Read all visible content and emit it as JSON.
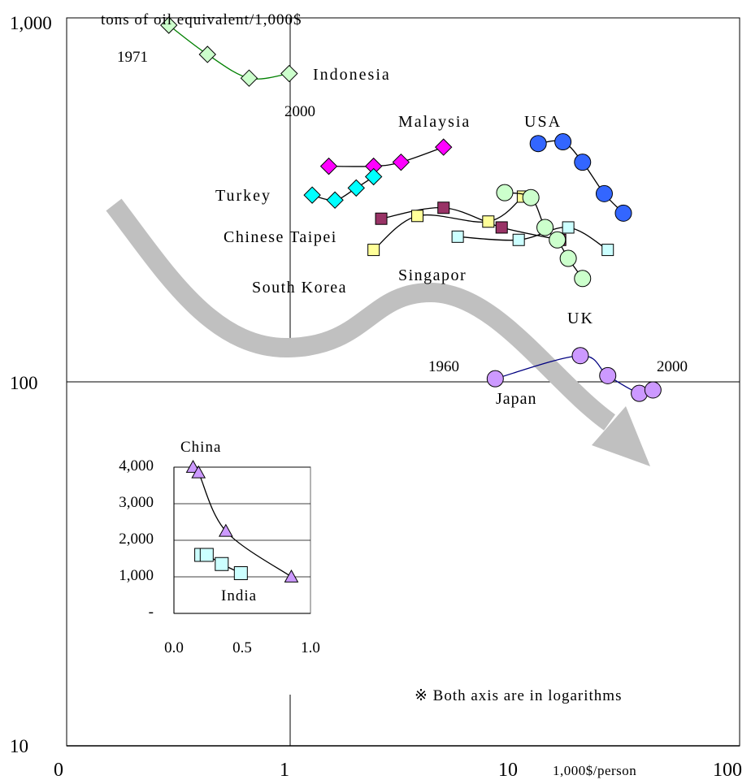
{
  "colors": {
    "indonesia": "#ccffcc",
    "malaysia": "#ff00ff",
    "turkey": "#00ffff",
    "chinese_taipei": "#993366",
    "singapore": "#ffff99",
    "south_korea": "#ccffff",
    "uk": "#ccffcc",
    "usa": "#3366ff",
    "japan": "#cc99ff",
    "china": "#cc99ff",
    "india": "#ccffff",
    "arrow": "#c0c0c0",
    "indonesia_line": "#008000",
    "japan_line": "#000080"
  },
  "chart_data": [
    {
      "type": "line",
      "title": "",
      "ylabel": "tons of oil equivalent/1,000$",
      "xlabel": "1,000$/person",
      "xscale": "log",
      "yscale": "log",
      "xlim": [
        0.1,
        100
      ],
      "ylim": [
        10,
        1000
      ],
      "x_tick_labels": [
        "0",
        "1",
        "10",
        "100"
      ],
      "y_tick_labels": [
        "10",
        "100",
        "1,000"
      ],
      "grid": false,
      "series": [
        {
          "name": "Indonesia",
          "marker": "diamond",
          "x": [
            0.28,
            0.42,
            0.65,
            0.99
          ],
          "y": [
            950,
            790,
            680,
            700
          ]
        },
        {
          "name": "Malaysia",
          "marker": "diamond",
          "x": [
            1.5,
            2.4,
            3.2,
            5.0
          ],
          "y": [
            390,
            390,
            400,
            440
          ]
        },
        {
          "name": "Turkey",
          "marker": "diamond",
          "x": [
            1.26,
            1.6,
            2.0,
            2.4
          ],
          "y": [
            325,
            315,
            340,
            365
          ]
        },
        {
          "name": "Chinese Taipei",
          "marker": "square",
          "x": [
            2.6,
            5.0,
            9.2,
            17.0
          ],
          "y": [
            280,
            300,
            265,
            245
          ]
        },
        {
          "name": "Singapor",
          "marker": "square",
          "x": [
            2.4,
            3.8,
            8.0,
            11.5
          ],
          "y": [
            230,
            285,
            275,
            322
          ]
        },
        {
          "name": "South Korea",
          "marker": "square",
          "x": [
            5.8,
            11.0,
            18.5,
            28.0
          ],
          "y": [
            250,
            245,
            265,
            230
          ]
        },
        {
          "name": "UK",
          "marker": "circle",
          "x": [
            9.5,
            12.5,
            14.5,
            16.5,
            18.5,
            21.5
          ],
          "y": [
            330,
            320,
            265,
            245,
            218,
            192
          ]
        },
        {
          "name": "USA",
          "marker": "circle",
          "x": [
            13.5,
            17.5,
            21.5,
            27.0,
            33.0
          ],
          "y": [
            450,
            455,
            400,
            328,
            290
          ]
        },
        {
          "name": "Japan",
          "marker": "circle",
          "x": [
            8.6,
            21.0,
            28.0,
            39.0,
            45.0
          ],
          "y": [
            102,
            118,
            104,
            93,
            95
          ]
        }
      ],
      "annotations": [
        "1971",
        "2000",
        "1960",
        "2000",
        "※ Both axis are in logarithms"
      ]
    },
    {
      "type": "line",
      "title": "",
      "xlim": [
        0.0,
        1.0
      ],
      "ylim": [
        0,
        5000
      ],
      "x_tick_labels": [
        "0.0",
        "0.5",
        "1.0"
      ],
      "y_tick_labels": [
        "-",
        "1,000",
        "2,000",
        "3,000",
        "4,000"
      ],
      "grid": true,
      "series": [
        {
          "name": "China",
          "marker": "triangle",
          "x": [
            0.14,
            0.18,
            0.38,
            0.86
          ],
          "y": [
            4000,
            3850,
            2250,
            1000
          ]
        },
        {
          "name": "India",
          "marker": "square",
          "x": [
            0.2,
            0.24,
            0.35,
            0.49
          ],
          "y": [
            1600,
            1600,
            1350,
            1100
          ]
        }
      ]
    }
  ]
}
